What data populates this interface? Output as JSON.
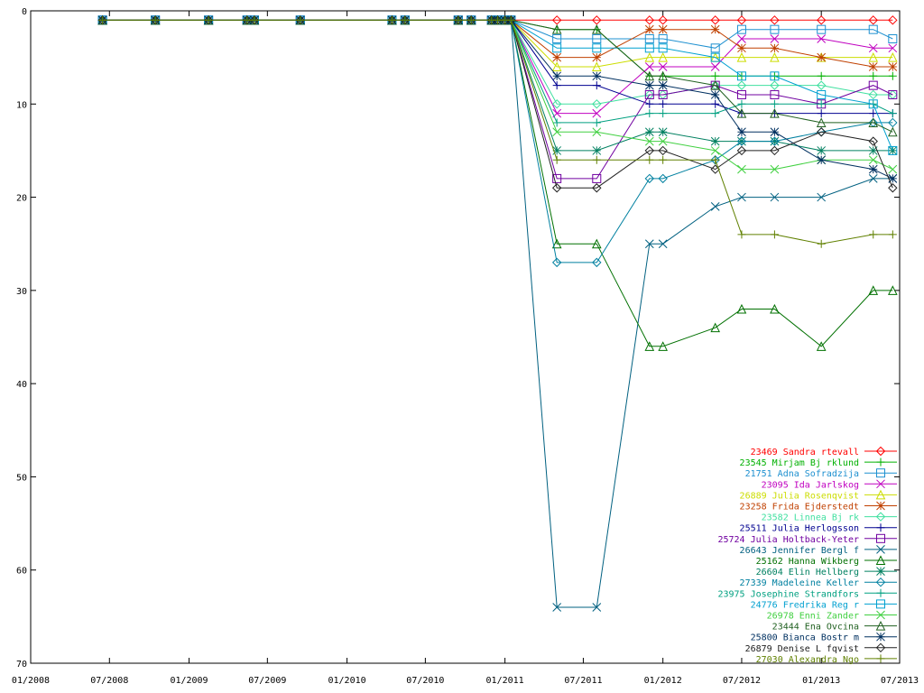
{
  "chart_data": {
    "type": "line",
    "title": "",
    "xlabel": "",
    "ylabel": "",
    "y_inverted": true,
    "ylim": [
      0,
      70
    ],
    "xlim": [
      "2008-01-01",
      "2013-07-01"
    ],
    "y_ticks": [
      "0",
      "10",
      "20",
      "30",
      "40",
      "50",
      "60",
      "70"
    ],
    "x_ticks": [
      {
        "date": "2008-01-01",
        "label": "01/2008"
      },
      {
        "date": "2008-07-01",
        "label": "07/2008"
      },
      {
        "date": "2009-01-01",
        "label": "01/2009"
      },
      {
        "date": "2009-07-01",
        "label": "07/2009"
      },
      {
        "date": "2010-01-01",
        "label": "01/2010"
      },
      {
        "date": "2010-07-01",
        "label": "07/2010"
      },
      {
        "date": "2011-01-01",
        "label": "01/2011"
      },
      {
        "date": "2011-07-01",
        "label": "07/2011"
      },
      {
        "date": "2012-01-01",
        "label": "01/2012"
      },
      {
        "date": "2012-07-01",
        "label": "07/2012"
      },
      {
        "date": "2013-01-01",
        "label": "01/2013"
      },
      {
        "date": "2013-07-01",
        "label": "07/2013"
      }
    ],
    "grid": false,
    "legend_position": "bottom-right",
    "x": [
      "2008-06-15",
      "2008-10-15",
      "2009-02-15",
      "2009-05-15",
      "2009-06-01",
      "2009-09-15",
      "2010-04-15",
      "2010-05-15",
      "2010-09-15",
      "2010-10-15",
      "2010-12-01",
      "2010-12-15",
      "2011-01-01",
      "2011-01-15",
      "2011-05-01",
      "2011-08-01",
      "2011-10-01",
      "2011-12-01",
      "2012-01-01",
      "2012-05-01",
      "2012-06-01",
      "2012-07-01",
      "2012-09-15",
      "2012-10-01",
      "2013-01-01",
      "2013-02-01",
      "2013-05-01",
      "2013-06-01",
      "2013-06-15"
    ],
    "series": [
      {
        "name": "23469 Sandra  rtevall",
        "color": "#ff0000",
        "marker": "diamond",
        "values": [
          1,
          1,
          1,
          1,
          1,
          1,
          1,
          1,
          1,
          1,
          1,
          1,
          1,
          1,
          1,
          1,
          null,
          1,
          1,
          1,
          null,
          1,
          1,
          null,
          1,
          null,
          1,
          null,
          1
        ]
      },
      {
        "name": "23545 Mirjam Bj rklund",
        "color": "#00b000",
        "marker": "plus",
        "values": [
          1,
          1,
          1,
          1,
          1,
          1,
          1,
          1,
          1,
          1,
          1,
          1,
          1,
          1,
          2,
          2,
          null,
          7,
          7,
          7,
          null,
          7,
          7,
          null,
          7,
          null,
          7,
          null,
          7
        ]
      },
      {
        "name": "21751 Adna Sofradzija",
        "color": "#1e90d0",
        "marker": "square",
        "values": [
          1,
          1,
          1,
          1,
          1,
          1,
          1,
          1,
          1,
          1,
          1,
          1,
          1,
          1,
          3,
          3,
          null,
          3,
          3,
          4,
          null,
          2,
          2,
          null,
          2,
          null,
          2,
          null,
          3
        ]
      },
      {
        "name": "23095 Ida Jarlskog",
        "color": "#c000c0",
        "marker": "cross",
        "values": [
          1,
          1,
          1,
          1,
          1,
          1,
          1,
          1,
          1,
          1,
          1,
          1,
          1,
          1,
          11,
          11,
          null,
          6,
          6,
          6,
          null,
          3,
          3,
          null,
          3,
          null,
          4,
          null,
          4
        ]
      },
      {
        "name": "26889 Julia Rosenqvist",
        "color": "#ccdd00",
        "marker": "triangle",
        "values": [
          1,
          1,
          1,
          1,
          1,
          1,
          1,
          1,
          1,
          1,
          1,
          1,
          1,
          1,
          6,
          6,
          null,
          5,
          5,
          5,
          null,
          5,
          5,
          null,
          5,
          null,
          5,
          null,
          5
        ]
      },
      {
        "name": "23258 Frida Ejderstedt",
        "color": "#c04000",
        "marker": "star",
        "values": [
          1,
          1,
          1,
          1,
          1,
          1,
          1,
          1,
          1,
          1,
          1,
          1,
          1,
          1,
          5,
          5,
          null,
          2,
          2,
          2,
          null,
          4,
          4,
          null,
          5,
          null,
          6,
          null,
          6
        ]
      },
      {
        "name": "23582 Linnea Bj rk",
        "color": "#40e0a0",
        "marker": "diamond",
        "values": [
          1,
          1,
          1,
          1,
          1,
          1,
          1,
          1,
          1,
          1,
          1,
          1,
          1,
          1,
          10,
          10,
          null,
          9,
          9,
          8,
          null,
          8,
          8,
          null,
          8,
          null,
          9,
          null,
          9
        ]
      },
      {
        "name": "25511 Julia Herlogsson",
        "color": "#000090",
        "marker": "plus",
        "values": [
          1,
          1,
          1,
          1,
          1,
          1,
          1,
          1,
          1,
          1,
          1,
          1,
          1,
          1,
          8,
          8,
          null,
          10,
          10,
          10,
          null,
          11,
          11,
          null,
          11,
          null,
          11,
          null,
          11
        ]
      },
      {
        "name": "25724 Julia Holtback-Yeter",
        "color": "#7000a0",
        "marker": "square",
        "values": [
          1,
          1,
          1,
          1,
          1,
          1,
          1,
          1,
          1,
          1,
          1,
          1,
          1,
          1,
          18,
          18,
          null,
          9,
          9,
          8,
          null,
          9,
          9,
          null,
          10,
          null,
          8,
          null,
          9
        ]
      },
      {
        "name": "26643 Jennifer Bergl f",
        "color": "#006080",
        "marker": "cross",
        "values": [
          1,
          1,
          1,
          1,
          1,
          1,
          1,
          1,
          1,
          1,
          1,
          1,
          1,
          1,
          64,
          64,
          null,
          25,
          25,
          21,
          null,
          20,
          20,
          null,
          20,
          null,
          18,
          null,
          18
        ]
      },
      {
        "name": "25162 Hanna Wikberg",
        "color": "#007000",
        "marker": "triangle",
        "values": [
          1,
          1,
          1,
          1,
          1,
          1,
          1,
          1,
          1,
          1,
          1,
          1,
          1,
          1,
          25,
          25,
          null,
          36,
          36,
          34,
          null,
          32,
          32,
          null,
          36,
          null,
          30,
          null,
          30
        ]
      },
      {
        "name": "26604 Elin Hellberg",
        "color": "#008060",
        "marker": "star",
        "values": [
          1,
          1,
          1,
          1,
          1,
          1,
          1,
          1,
          1,
          1,
          1,
          1,
          1,
          1,
          15,
          15,
          null,
          13,
          13,
          14,
          null,
          14,
          14,
          null,
          15,
          null,
          15,
          null,
          15
        ]
      },
      {
        "name": "27339 Madeleine Keller",
        "color": "#0080a0",
        "marker": "diamond",
        "values": [
          1,
          1,
          1,
          1,
          1,
          1,
          1,
          1,
          1,
          1,
          1,
          1,
          1,
          1,
          27,
          27,
          null,
          18,
          18,
          16,
          null,
          14,
          14,
          null,
          13,
          null,
          12,
          null,
          12
        ]
      },
      {
        "name": "23975 Josephine Strandfors",
        "color": "#00a080",
        "marker": "plus",
        "values": [
          1,
          1,
          1,
          1,
          1,
          1,
          1,
          1,
          1,
          1,
          1,
          1,
          1,
          1,
          12,
          12,
          null,
          11,
          11,
          11,
          null,
          10,
          10,
          null,
          10,
          null,
          10,
          null,
          11
        ]
      },
      {
        "name": "24776 Fredrika Reg r",
        "color": "#00a0d0",
        "marker": "square",
        "values": [
          1,
          1,
          1,
          1,
          1,
          1,
          1,
          1,
          1,
          1,
          1,
          1,
          1,
          1,
          4,
          4,
          null,
          4,
          4,
          5,
          null,
          7,
          7,
          null,
          9,
          null,
          10,
          null,
          15
        ]
      },
      {
        "name": "26978 Enni Zander",
        "color": "#40d040",
        "marker": "cross",
        "values": [
          1,
          1,
          1,
          1,
          1,
          1,
          1,
          1,
          1,
          1,
          1,
          1,
          1,
          1,
          13,
          13,
          null,
          14,
          14,
          15,
          null,
          17,
          17,
          null,
          16,
          null,
          16,
          null,
          17
        ]
      },
      {
        "name": "23444 Ena Ovcina",
        "color": "#206020",
        "marker": "triangle",
        "values": [
          1,
          1,
          1,
          1,
          1,
          1,
          1,
          1,
          1,
          1,
          1,
          1,
          1,
          1,
          2,
          2,
          null,
          7,
          7,
          8,
          null,
          11,
          11,
          null,
          12,
          null,
          12,
          null,
          13
        ]
      },
      {
        "name": "25800 Bianca Bostr m",
        "color": "#003060",
        "marker": "star",
        "values": [
          1,
          1,
          1,
          1,
          1,
          1,
          1,
          1,
          1,
          1,
          1,
          1,
          1,
          1,
          7,
          7,
          null,
          8,
          8,
          9,
          null,
          13,
          13,
          null,
          16,
          null,
          17,
          null,
          18
        ]
      },
      {
        "name": "26879 Denise L fqvist",
        "color": "#202020",
        "marker": "diamond",
        "values": [
          1,
          1,
          1,
          1,
          1,
          1,
          1,
          1,
          1,
          1,
          1,
          1,
          1,
          1,
          19,
          19,
          null,
          15,
          15,
          17,
          null,
          15,
          15,
          null,
          13,
          null,
          14,
          null,
          19
        ]
      },
      {
        "name": "27030 Alexandra Ngo",
        "color": "#608000",
        "marker": "plus",
        "values": [
          1,
          1,
          1,
          1,
          1,
          1,
          1,
          1,
          1,
          1,
          1,
          1,
          1,
          1,
          16,
          16,
          null,
          16,
          16,
          16,
          null,
          24,
          24,
          null,
          25,
          null,
          24,
          null,
          24
        ]
      }
    ]
  }
}
